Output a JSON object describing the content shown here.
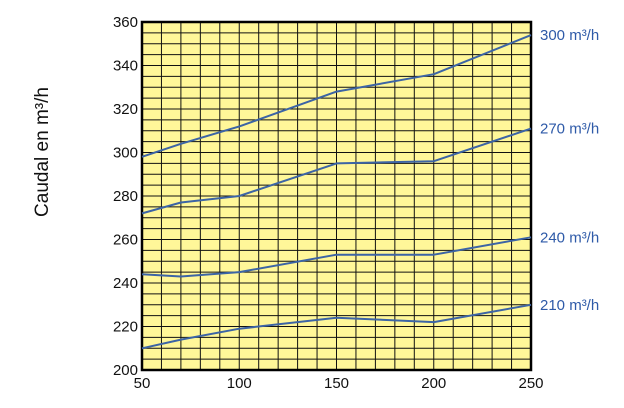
{
  "chart_data": {
    "type": "line",
    "title": "",
    "xlabel": "",
    "ylabel": "Caudal en m³/h",
    "x_ticks": [
      50,
      100,
      150,
      200,
      250
    ],
    "y_ticks": [
      200,
      220,
      240,
      260,
      280,
      300,
      320,
      340,
      360
    ],
    "xlim": [
      50,
      250
    ],
    "ylim": [
      200,
      360
    ],
    "grid": true,
    "legend": "inline-right",
    "x": [
      50,
      70,
      100,
      150,
      200,
      250
    ],
    "series": [
      {
        "name": "300 m³/h",
        "values": [
          298,
          304,
          312,
          328,
          336,
          354
        ]
      },
      {
        "name": "270 m³/h",
        "values": [
          272,
          277,
          280,
          295,
          296,
          311
        ]
      },
      {
        "name": "240 m³/h",
        "values": [
          244,
          243,
          245,
          253,
          253,
          261
        ]
      },
      {
        "name": "210 m³/h",
        "values": [
          210,
          214,
          219,
          224,
          222,
          230
        ]
      }
    ],
    "colors": {
      "plot_background": "#FFF799",
      "grid": "#111111",
      "line": "#3C64A5",
      "label": "#2E5AA8"
    }
  }
}
